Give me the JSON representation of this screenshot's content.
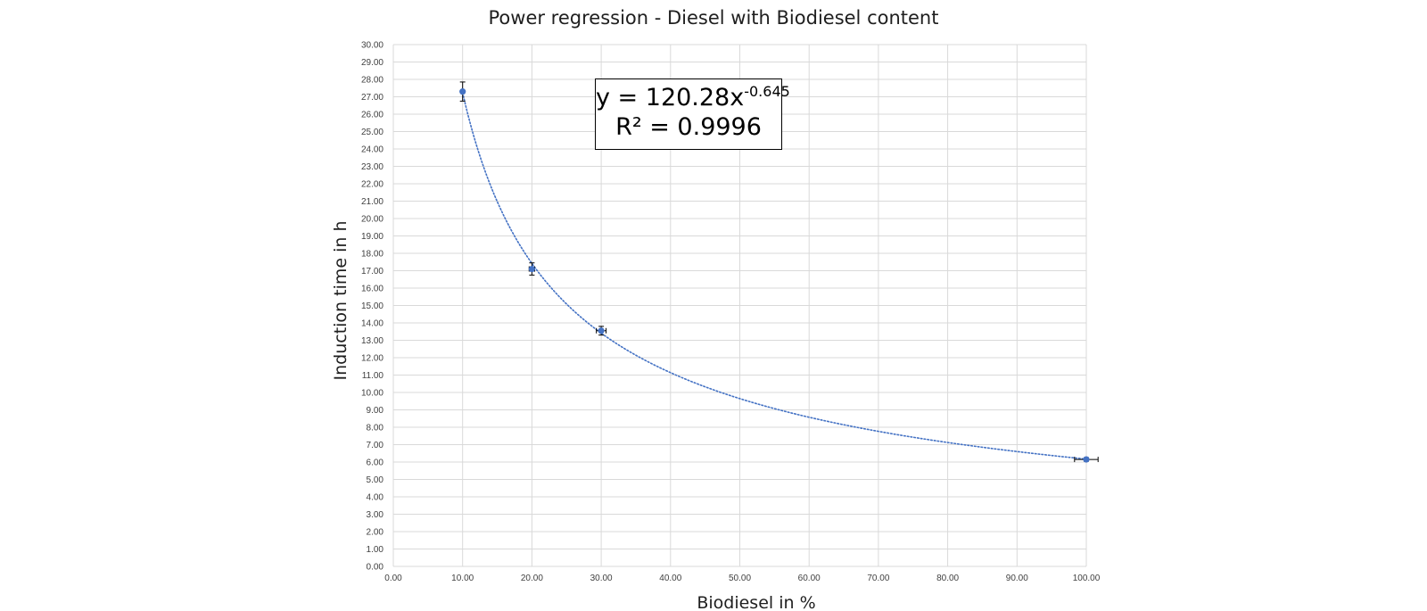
{
  "chart_data": {
    "type": "scatter",
    "title": "Power regression - Diesel with Biodiesel content",
    "xlabel": "Biodiesel in %",
    "ylabel": "Induction time in h",
    "xlim": [
      0,
      100
    ],
    "ylim": [
      0,
      30
    ],
    "x_ticks": [
      "0.00",
      "10.00",
      "20.00",
      "30.00",
      "40.00",
      "50.00",
      "60.00",
      "70.00",
      "80.00",
      "90.00",
      "100.00"
    ],
    "y_ticks": [
      "0.00",
      "1.00",
      "2.00",
      "3.00",
      "4.00",
      "5.00",
      "6.00",
      "7.00",
      "8.00",
      "9.00",
      "10.00",
      "11.00",
      "12.00",
      "13.00",
      "14.00",
      "15.00",
      "16.00",
      "17.00",
      "18.00",
      "19.00",
      "20.00",
      "21.00",
      "22.00",
      "23.00",
      "24.00",
      "25.00",
      "26.00",
      "27.00",
      "28.00",
      "29.00",
      "30.00"
    ],
    "grid": true,
    "series": [
      {
        "x": [
          10,
          20,
          30,
          100
        ],
        "y": [
          27.3,
          17.1,
          13.55,
          6.15
        ],
        "y_error": [
          0.55,
          0.35,
          0.25,
          0.1
        ],
        "x_error": [
          0,
          0.4,
          0.7,
          1.7
        ],
        "color": "#4472c4"
      }
    ],
    "trendline": {
      "type": "power",
      "coefficient": 120.28,
      "exponent": -0.645,
      "color": "#4472c4",
      "style": "dotted",
      "equation_prefix": "y = 120.28x",
      "equation_exponent": "-0.645",
      "r_squared_label": "R² = 0.9996"
    }
  }
}
